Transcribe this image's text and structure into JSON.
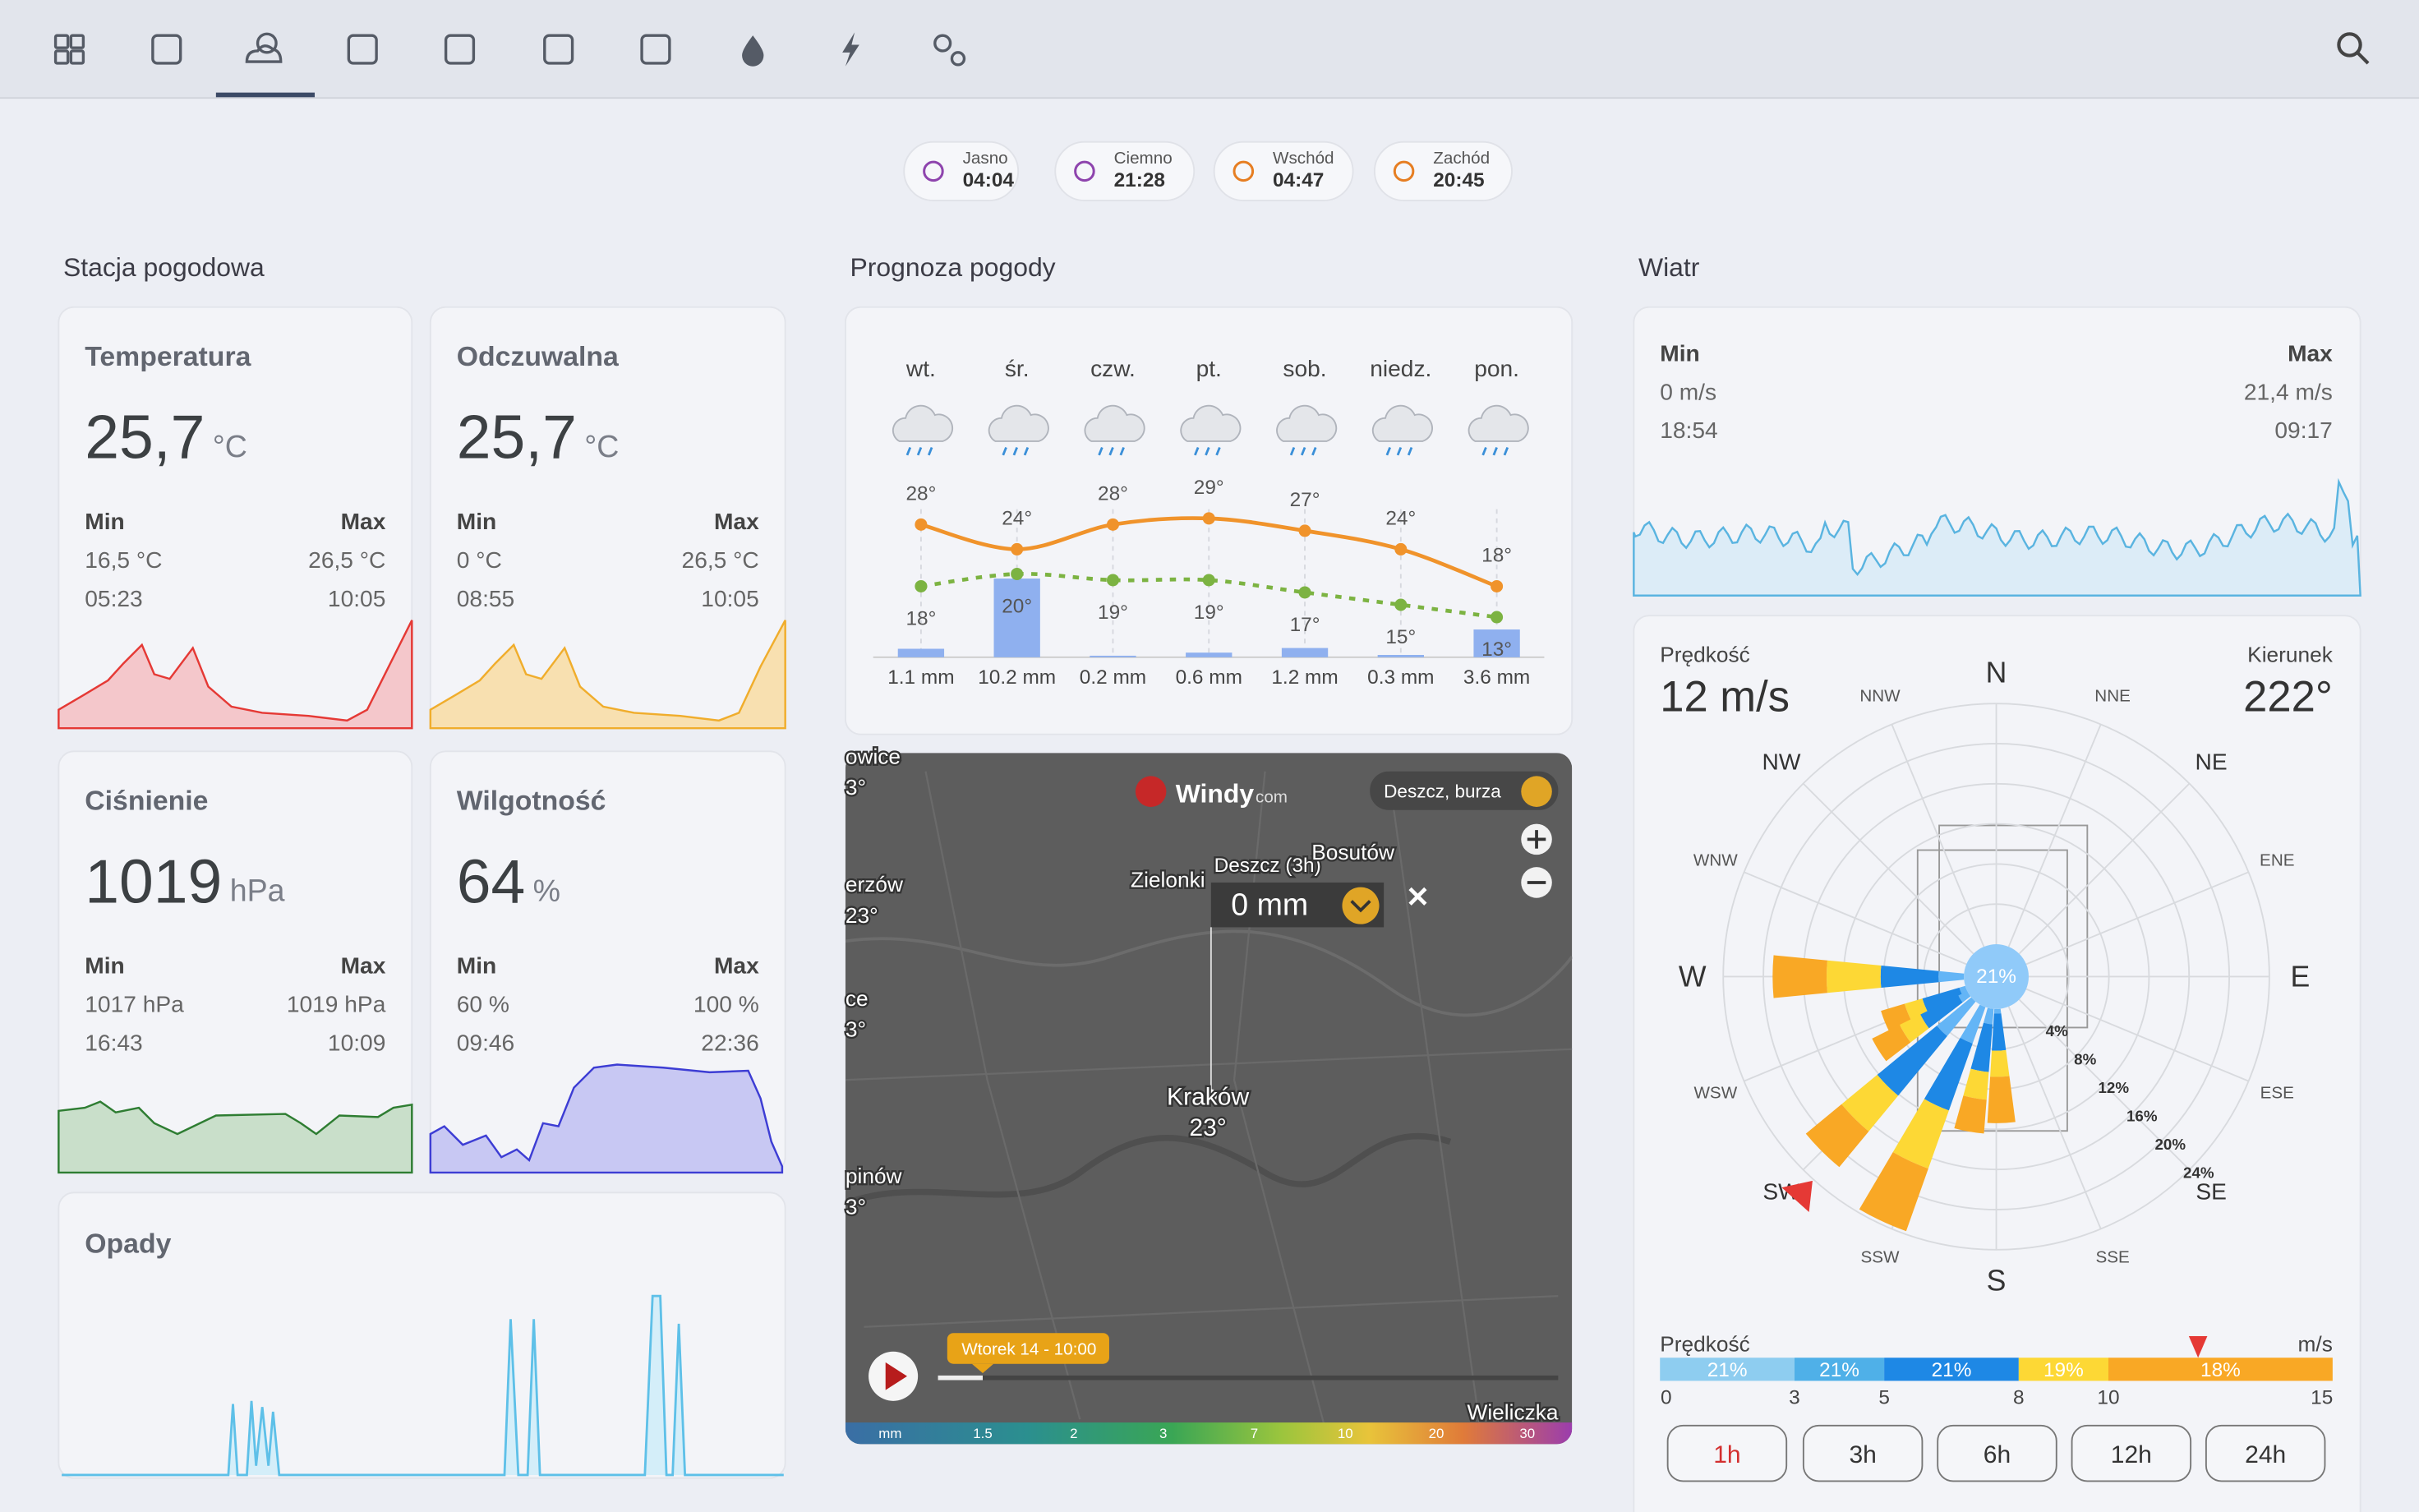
{
  "sun": [
    {
      "label": "Jasno",
      "time": "04:04"
    },
    {
      "label": "Ciemno",
      "time": "21:28"
    },
    {
      "label": "Wschód",
      "time": "04:47"
    },
    {
      "label": "Zachód",
      "time": "20:45"
    }
  ],
  "sections": {
    "station": "Stacja pogodowa",
    "forecast": "Prognoza pogody",
    "wind": "Wiatr"
  },
  "station": [
    {
      "title": "Temperatura",
      "value": "25,7",
      "unit": "°C",
      "min_label": "Min",
      "max_label": "Max",
      "min": "16,5 °C",
      "max": "26,5 °C",
      "min_time": "05:23",
      "max_time": "10:05"
    },
    {
      "title": "Odczuwalna",
      "value": "25,7",
      "unit": "°C",
      "min_label": "Min",
      "max_label": "Max",
      "min": "0 °C",
      "max": "26,5 °C",
      "min_time": "08:55",
      "max_time": "10:05"
    },
    {
      "title": "Ciśnienie",
      "value": "1019",
      "unit": "hPa",
      "min_label": "Min",
      "max_label": "Max",
      "min": "1017 hPa",
      "max": "1019 hPa",
      "min_time": "16:43",
      "max_time": "10:09"
    },
    {
      "title": "Wilgotność",
      "value": "64",
      "unit": "%",
      "min_label": "Min",
      "max_label": "Max",
      "min": "60 %",
      "max": "100 %",
      "min_time": "09:46",
      "max_time": "22:36"
    }
  ],
  "precip": {
    "title": "Opady"
  },
  "forecast": {
    "days": [
      {
        "day": "wt.",
        "high": 28,
        "high_label": "28°",
        "low": 18,
        "low_label": "18°",
        "rain": 1.1,
        "rain_label": "1.1 mm"
      },
      {
        "day": "śr.",
        "high": 24,
        "high_label": "24°",
        "low": 20,
        "low_label": "20°",
        "rain": 10.2,
        "rain_label": "10.2 mm"
      },
      {
        "day": "czw.",
        "high": 28,
        "high_label": "28°",
        "low": 19,
        "low_label": "19°",
        "rain": 0.2,
        "rain_label": "0.2 mm"
      },
      {
        "day": "pt.",
        "high": 29,
        "high_label": "29°",
        "low": 19,
        "low_label": "19°",
        "rain": 0.6,
        "rain_label": "0.6 mm"
      },
      {
        "day": "sob.",
        "high": 27,
        "high_label": "27°",
        "low": 17,
        "low_label": "17°",
        "rain": 1.2,
        "rain_label": "1.2 mm"
      },
      {
        "day": "niedz.",
        "high": 24,
        "high_label": "24°",
        "low": 15,
        "low_label": "15°",
        "rain": 0.3,
        "rain_label": "0.3 mm"
      },
      {
        "day": "pon.",
        "high": 18,
        "high_label": "18°",
        "low": 13,
        "low_label": "13°",
        "rain": 3.6,
        "rain_label": "3.6 mm"
      }
    ]
  },
  "map": {
    "brand": "Windy",
    "brand_suffix": "com",
    "layer": "Deszcz, burza",
    "popup_title": "Deszcz (3h)",
    "popup_value": "0 mm",
    "places": [
      {
        "name": "Bosutów"
      },
      {
        "name": "Zielonki"
      },
      {
        "name": "Kraków",
        "temp": "23°"
      },
      {
        "name": "Wieliczka"
      },
      {
        "name": "owice",
        "temp": "3°"
      },
      {
        "name": "erzów",
        "temp": "23°"
      },
      {
        "name": "ce",
        "temp": "3°"
      },
      {
        "name": "pinów",
        "temp": "3°"
      }
    ],
    "time": "Wtorek 14 - 10:00",
    "scale": [
      "mm",
      "1.5",
      "2",
      "3",
      "7",
      "10",
      "20",
      "30"
    ]
  },
  "wind": {
    "min_label": "Min",
    "max_label": "Max",
    "min": "0 m/s",
    "max": "21,4 m/s",
    "min_time": "18:54",
    "max_time": "09:17",
    "speed_label": "Prędkość",
    "speed": 12,
    "speed_text": "12 m/s",
    "direction_label": "Kierunek",
    "direction": 222,
    "direction_text": "222°",
    "calm": "21%",
    "compass": [
      "N",
      "NNE",
      "NE",
      "ENE",
      "E",
      "ESE",
      "SE",
      "SSE",
      "S",
      "SSW",
      "SW",
      "WSW",
      "W",
      "WNW",
      "NW",
      "NNW"
    ],
    "rings": [
      "4%",
      "8%",
      "12%",
      "16%",
      "20%",
      "24%"
    ],
    "legend_title": "Prędkość",
    "legend_unit": "m/s",
    "legend_ticks": [
      0,
      3,
      5,
      8,
      10,
      15
    ],
    "legend_shares": [
      "21%",
      "21%",
      "21%",
      "19%",
      "18%"
    ],
    "periods": [
      "1h",
      "3h",
      "6h",
      "12h",
      "24h"
    ]
  }
}
